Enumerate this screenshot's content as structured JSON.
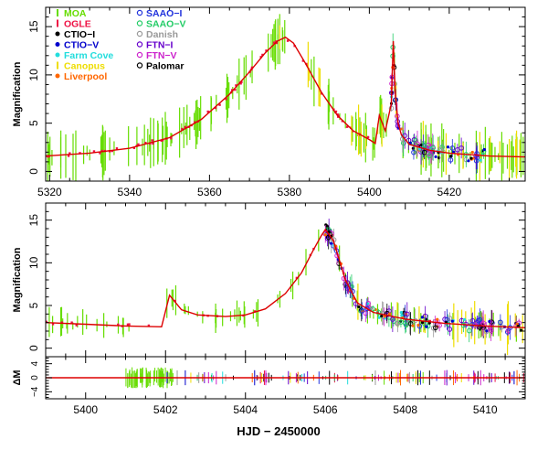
{
  "figure": {
    "x_axis_label": "HJD − 2450000"
  },
  "legend": {
    "entries": [
      {
        "name": "MOA",
        "color": "#66dd00",
        "marker": "line"
      },
      {
        "name": "OGLE",
        "color": "#ee1144",
        "marker": "line"
      },
      {
        "name": "CTIO−I",
        "color": "#000000",
        "marker": "dot"
      },
      {
        "name": "CTIO−V",
        "color": "#0000cc",
        "marker": "dot"
      },
      {
        "name": "Farm Cove",
        "color": "#22dddd",
        "marker": "dot"
      },
      {
        "name": "Canopus",
        "color": "#eedd00",
        "marker": "line"
      },
      {
        "name": "Liverpool",
        "color": "#ff6600",
        "marker": "dot"
      },
      {
        "name": "SAAO−I",
        "color": "#2233dd",
        "marker": "circle"
      },
      {
        "name": "SAAO−V",
        "color": "#22cc66",
        "marker": "circle"
      },
      {
        "name": "Danish",
        "color": "#999999",
        "marker": "circle"
      },
      {
        "name": "FTN−I",
        "color": "#6600cc",
        "marker": "circle"
      },
      {
        "name": "FTN−V",
        "color": "#cc22cc",
        "marker": "circle"
      },
      {
        "name": "Palomar",
        "color": "#000000",
        "marker": "circle"
      }
    ]
  },
  "chart_data": [
    {
      "type": "line",
      "panel": "top",
      "ylabel": "Magnification",
      "xlim": [
        5319,
        5439
      ],
      "ylim": [
        -1,
        17
      ],
      "x_ticks": [
        5320,
        5340,
        5360,
        5380,
        5400,
        5420
      ],
      "y_ticks": [
        0,
        5,
        10,
        15
      ],
      "model_curve": {
        "color": "#dd0000",
        "x": [
          5319,
          5330,
          5340,
          5350,
          5358,
          5365,
          5370,
          5374,
          5377,
          5379,
          5381,
          5384,
          5388,
          5392,
          5396,
          5400,
          5401.5,
          5402.5,
          5404,
          5405.5,
          5406,
          5406.5,
          5407.2,
          5408,
          5410,
          5415,
          5420,
          5430,
          5439
        ],
        "y": [
          1.6,
          1.9,
          2.4,
          3.5,
          5.4,
          8.0,
          10.3,
          12.3,
          13.5,
          13.9,
          13.3,
          11.2,
          8.2,
          5.8,
          4.2,
          3.3,
          2.9,
          5.8,
          4.2,
          7.0,
          13.5,
          8.0,
          5.0,
          3.8,
          2.8,
          2.2,
          1.9,
          1.6,
          1.5
        ]
      }
    },
    {
      "type": "line",
      "panel": "middle",
      "ylabel": "Magnification",
      "xlim": [
        5399,
        5411
      ],
      "ylim": [
        -1,
        17
      ],
      "x_ticks": [
        5400,
        5402,
        5404,
        5406,
        5408,
        5410
      ],
      "y_ticks": [
        0,
        5,
        10,
        15
      ],
      "model_curve": {
        "color": "#dd0000",
        "x": [
          5399,
          5400,
          5401,
          5401.9,
          5402.1,
          5402.4,
          5402.8,
          5403.5,
          5404,
          5404.5,
          5405,
          5405.4,
          5405.7,
          5405.9,
          5406.0,
          5406.2,
          5406.5,
          5406.8,
          5407.2,
          5408,
          5409,
          5410,
          5411
        ],
        "y": [
          3.0,
          2.8,
          2.6,
          2.5,
          6.2,
          4.5,
          3.9,
          3.7,
          3.9,
          4.6,
          6.4,
          8.8,
          11.5,
          13.2,
          13.9,
          12.6,
          8.0,
          5.3,
          4.2,
          3.4,
          2.9,
          2.6,
          2.4
        ]
      }
    },
    {
      "type": "scatter",
      "panel": "residuals",
      "ylabel": "ΔM",
      "xlim": [
        5399,
        5411
      ],
      "ylim": [
        -6,
        6
      ],
      "x_ticks": [
        5400,
        5402,
        5404,
        5406,
        5408,
        5410
      ],
      "y_ticks": [
        -4,
        0,
        4
      ],
      "y_tick_labels": [
        "−4",
        "0",
        "4"
      ],
      "zero_line": {
        "color": "#dd0000",
        "y": 0
      }
    }
  ]
}
